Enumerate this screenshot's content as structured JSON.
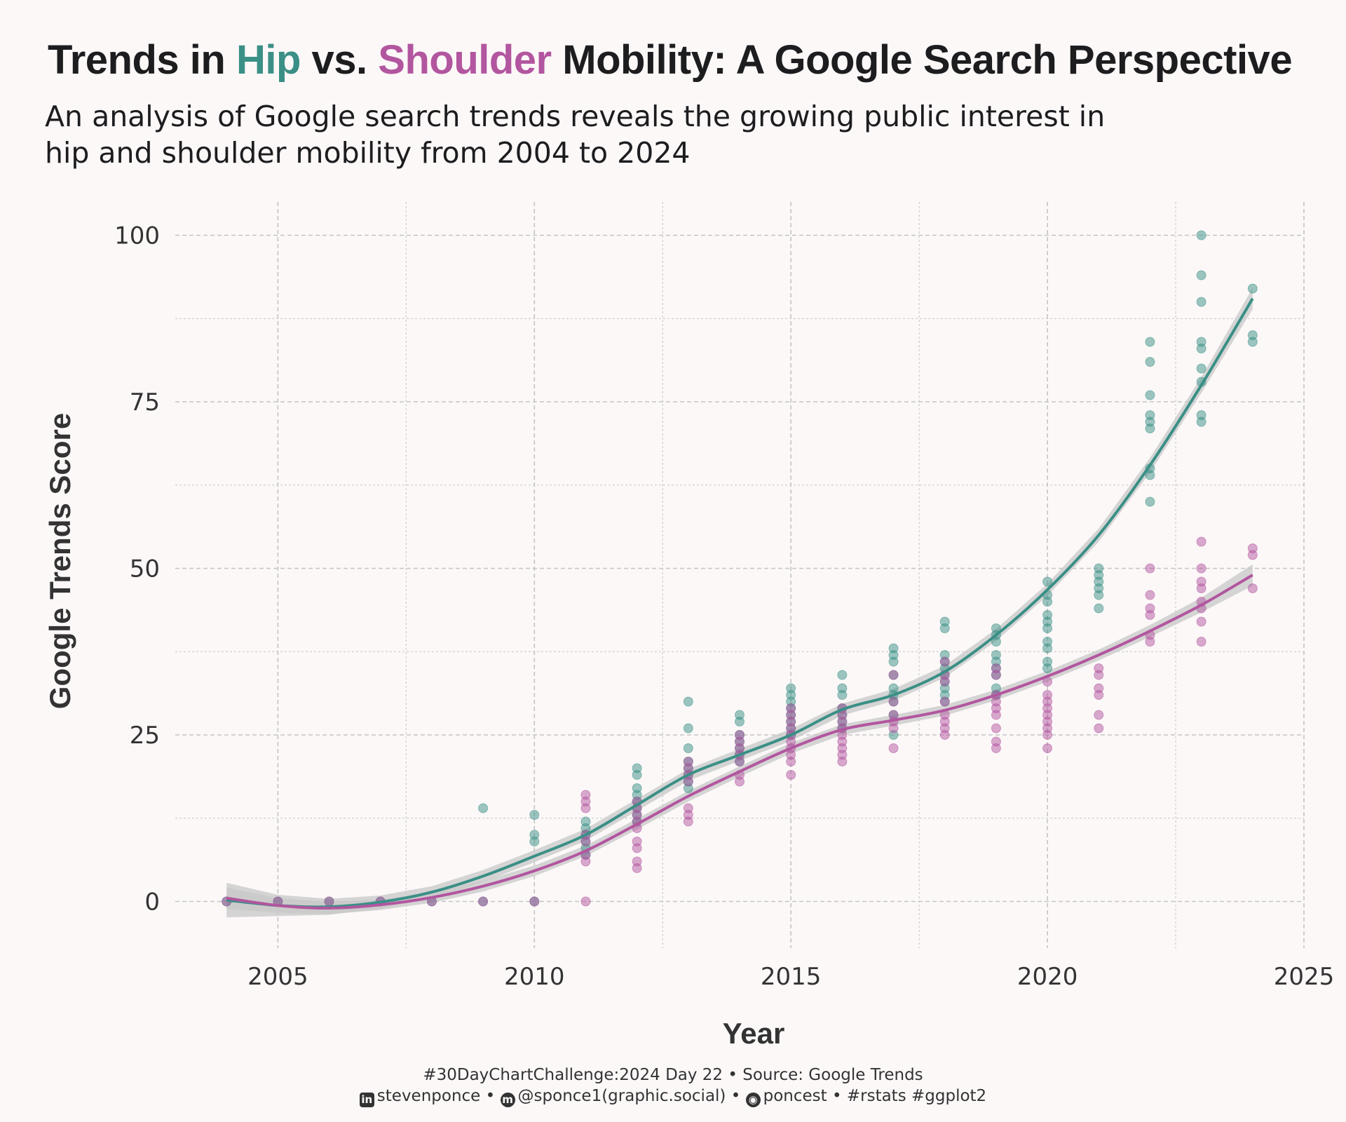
{
  "title": {
    "part1": "Trends in",
    "hip": "Hip",
    "part2": "vs.",
    "shoulder": "Shoulder",
    "part3": "Mobility: A Google Search Perspective"
  },
  "subtitle": {
    "line1": "An analysis of Google search trends reveals the growing public interest in",
    "line2": "hip and shoulder mobility from 2004 to 2024"
  },
  "caption": {
    "line1": "#30DayChartChallenge:2024 Day 22 • Source: Google Trends",
    "linkedin": "stevenponce",
    "mastodon": "@sponce1(graphic.social)",
    "github": "poncest",
    "tags": "#rstats #ggplot2",
    "sep": "•"
  },
  "colors": {
    "hip": "#3a8f86",
    "shoulder": "#b2569f",
    "overlap": "#5d6f88",
    "ribbon": "#c8c8c8",
    "grid": "#c4c4c4",
    "background": "#fcf8f8"
  },
  "icons": [
    "linkedin-icon",
    "mastodon-icon",
    "github-icon"
  ],
  "chart_data": {
    "type": "scatter",
    "xlabel": "Year",
    "ylabel": "Google Trends Score",
    "xlim": [
      2003,
      2025
    ],
    "ylim": [
      -7,
      105
    ],
    "x_ticks": [
      2005,
      2010,
      2015,
      2020,
      2025
    ],
    "y_ticks": [
      0,
      25,
      50,
      75,
      100
    ],
    "grid": "dashed, major and minor",
    "legend": "none (series identified by colored words in title)",
    "series": [
      {
        "name": "Hip",
        "color": "#3a8f86",
        "points": [
          [
            2004,
            0
          ],
          [
            2005,
            0
          ],
          [
            2006,
            0
          ],
          [
            2007,
            0
          ],
          [
            2008,
            0
          ],
          [
            2009,
            14
          ],
          [
            2009,
            0
          ],
          [
            2010,
            13
          ],
          [
            2010,
            10
          ],
          [
            2010,
            9
          ],
          [
            2010,
            0
          ],
          [
            2011,
            12
          ],
          [
            2011,
            11
          ],
          [
            2011,
            10
          ],
          [
            2011,
            9
          ],
          [
            2011,
            8
          ],
          [
            2011,
            7
          ],
          [
            2012,
            20
          ],
          [
            2012,
            19
          ],
          [
            2012,
            17
          ],
          [
            2012,
            16
          ],
          [
            2012,
            15
          ],
          [
            2012,
            14
          ],
          [
            2012,
            13
          ],
          [
            2012,
            12
          ],
          [
            2013,
            30
          ],
          [
            2013,
            26
          ],
          [
            2013,
            23
          ],
          [
            2013,
            21
          ],
          [
            2013,
            20
          ],
          [
            2013,
            19
          ],
          [
            2013,
            18
          ],
          [
            2013,
            17
          ],
          [
            2014,
            28
          ],
          [
            2014,
            27
          ],
          [
            2014,
            25
          ],
          [
            2014,
            24
          ],
          [
            2014,
            23
          ],
          [
            2014,
            22
          ],
          [
            2014,
            21
          ],
          [
            2015,
            32
          ],
          [
            2015,
            31
          ],
          [
            2015,
            30
          ],
          [
            2015,
            29
          ],
          [
            2015,
            28
          ],
          [
            2015,
            27
          ],
          [
            2015,
            26
          ],
          [
            2015,
            25
          ],
          [
            2016,
            34
          ],
          [
            2016,
            32
          ],
          [
            2016,
            31
          ],
          [
            2016,
            29
          ],
          [
            2016,
            28
          ],
          [
            2016,
            27
          ],
          [
            2016,
            26
          ],
          [
            2017,
            38
          ],
          [
            2017,
            37
          ],
          [
            2017,
            36
          ],
          [
            2017,
            34
          ],
          [
            2017,
            32
          ],
          [
            2017,
            31
          ],
          [
            2017,
            30
          ],
          [
            2017,
            28
          ],
          [
            2017,
            25
          ],
          [
            2018,
            42
          ],
          [
            2018,
            41
          ],
          [
            2018,
            37
          ],
          [
            2018,
            36
          ],
          [
            2018,
            35
          ],
          [
            2018,
            34
          ],
          [
            2018,
            33
          ],
          [
            2018,
            32
          ],
          [
            2018,
            31
          ],
          [
            2018,
            30
          ],
          [
            2019,
            41
          ],
          [
            2019,
            40
          ],
          [
            2019,
            39
          ],
          [
            2019,
            37
          ],
          [
            2019,
            36
          ],
          [
            2019,
            35
          ],
          [
            2019,
            34
          ],
          [
            2019,
            32
          ],
          [
            2019,
            31
          ],
          [
            2020,
            48
          ],
          [
            2020,
            46
          ],
          [
            2020,
            45
          ],
          [
            2020,
            43
          ],
          [
            2020,
            42
          ],
          [
            2020,
            41
          ],
          [
            2020,
            39
          ],
          [
            2020,
            38
          ],
          [
            2020,
            36
          ],
          [
            2020,
            35
          ],
          [
            2021,
            50
          ],
          [
            2021,
            49
          ],
          [
            2021,
            48
          ],
          [
            2021,
            47
          ],
          [
            2021,
            46
          ],
          [
            2021,
            44
          ],
          [
            2022,
            84
          ],
          [
            2022,
            81
          ],
          [
            2022,
            76
          ],
          [
            2022,
            73
          ],
          [
            2022,
            72
          ],
          [
            2022,
            71
          ],
          [
            2022,
            65
          ],
          [
            2022,
            64
          ],
          [
            2022,
            60
          ],
          [
            2023,
            100
          ],
          [
            2023,
            94
          ],
          [
            2023,
            90
          ],
          [
            2023,
            84
          ],
          [
            2023,
            83
          ],
          [
            2023,
            80
          ],
          [
            2023,
            78
          ],
          [
            2023,
            73
          ],
          [
            2023,
            72
          ],
          [
            2024,
            92
          ],
          [
            2024,
            85
          ],
          [
            2024,
            84
          ]
        ],
        "trend": [
          [
            2004,
            0.2
          ],
          [
            2005,
            -0.6
          ],
          [
            2006,
            -0.8
          ],
          [
            2007,
            -0.1
          ],
          [
            2008,
            1.4
          ],
          [
            2009,
            3.8
          ],
          [
            2010,
            6.8
          ],
          [
            2011,
            10.0
          ],
          [
            2012,
            14.5
          ],
          [
            2013,
            19.0
          ],
          [
            2014,
            22.0
          ],
          [
            2015,
            25.0
          ],
          [
            2016,
            28.8
          ],
          [
            2017,
            31.0
          ],
          [
            2018,
            34.5
          ],
          [
            2019,
            40.0
          ],
          [
            2020,
            46.8
          ],
          [
            2021,
            55.0
          ],
          [
            2022,
            65.5
          ],
          [
            2023,
            77.5
          ],
          [
            2024,
            90.5
          ]
        ],
        "band_halfwidth": [
          2.6,
          1.6,
          1.2,
          1.0,
          0.9,
          0.9,
          0.9,
          0.9,
          0.9,
          0.9,
          0.9,
          0.9,
          0.9,
          0.9,
          0.9,
          0.9,
          0.9,
          1.0,
          1.1,
          1.2,
          1.6
        ]
      },
      {
        "name": "Shoulder",
        "color": "#b2569f",
        "points": [
          [
            2004,
            0
          ],
          [
            2005,
            0
          ],
          [
            2006,
            0
          ],
          [
            2007,
            0
          ],
          [
            2008,
            0
          ],
          [
            2009,
            0
          ],
          [
            2010,
            0
          ],
          [
            2011,
            16
          ],
          [
            2011,
            15
          ],
          [
            2011,
            14
          ],
          [
            2011,
            10
          ],
          [
            2011,
            9
          ],
          [
            2011,
            7
          ],
          [
            2011,
            6
          ],
          [
            2011,
            0
          ],
          [
            2012,
            15
          ],
          [
            2012,
            14
          ],
          [
            2012,
            13
          ],
          [
            2012,
            12
          ],
          [
            2012,
            11
          ],
          [
            2012,
            9
          ],
          [
            2012,
            8
          ],
          [
            2012,
            6
          ],
          [
            2012,
            5
          ],
          [
            2013,
            21
          ],
          [
            2013,
            20
          ],
          [
            2013,
            19
          ],
          [
            2013,
            18
          ],
          [
            2013,
            14
          ],
          [
            2013,
            13
          ],
          [
            2013,
            12
          ],
          [
            2014,
            25
          ],
          [
            2014,
            24
          ],
          [
            2014,
            23
          ],
          [
            2014,
            22
          ],
          [
            2014,
            21
          ],
          [
            2014,
            19
          ],
          [
            2014,
            18
          ],
          [
            2015,
            29
          ],
          [
            2015,
            28
          ],
          [
            2015,
            27
          ],
          [
            2015,
            26
          ],
          [
            2015,
            25
          ],
          [
            2015,
            24
          ],
          [
            2015,
            23
          ],
          [
            2015,
            22
          ],
          [
            2015,
            21
          ],
          [
            2015,
            19
          ],
          [
            2016,
            29
          ],
          [
            2016,
            28
          ],
          [
            2016,
            27
          ],
          [
            2016,
            26
          ],
          [
            2016,
            25
          ],
          [
            2016,
            24
          ],
          [
            2016,
            23
          ],
          [
            2016,
            22
          ],
          [
            2016,
            21
          ],
          [
            2017,
            34
          ],
          [
            2017,
            30
          ],
          [
            2017,
            28
          ],
          [
            2017,
            27
          ],
          [
            2017,
            26
          ],
          [
            2017,
            23
          ],
          [
            2018,
            36
          ],
          [
            2018,
            34
          ],
          [
            2018,
            33
          ],
          [
            2018,
            30
          ],
          [
            2018,
            28
          ],
          [
            2018,
            27
          ],
          [
            2018,
            26
          ],
          [
            2018,
            25
          ],
          [
            2019,
            35
          ],
          [
            2019,
            34
          ],
          [
            2019,
            31
          ],
          [
            2019,
            30
          ],
          [
            2019,
            29
          ],
          [
            2019,
            28
          ],
          [
            2019,
            26
          ],
          [
            2019,
            24
          ],
          [
            2019,
            23
          ],
          [
            2020,
            33
          ],
          [
            2020,
            31
          ],
          [
            2020,
            30
          ],
          [
            2020,
            29
          ],
          [
            2020,
            28
          ],
          [
            2020,
            27
          ],
          [
            2020,
            26
          ],
          [
            2020,
            25
          ],
          [
            2020,
            23
          ],
          [
            2021,
            35
          ],
          [
            2021,
            34
          ],
          [
            2021,
            32
          ],
          [
            2021,
            31
          ],
          [
            2021,
            28
          ],
          [
            2021,
            26
          ],
          [
            2022,
            50
          ],
          [
            2022,
            46
          ],
          [
            2022,
            44
          ],
          [
            2022,
            43
          ],
          [
            2022,
            40
          ],
          [
            2022,
            39
          ],
          [
            2023,
            54
          ],
          [
            2023,
            50
          ],
          [
            2023,
            48
          ],
          [
            2023,
            47
          ],
          [
            2023,
            45
          ],
          [
            2023,
            44
          ],
          [
            2023,
            42
          ],
          [
            2023,
            39
          ],
          [
            2024,
            53
          ],
          [
            2024,
            52
          ],
          [
            2024,
            47
          ]
        ],
        "trend": [
          [
            2004,
            0.5
          ],
          [
            2005,
            -0.6
          ],
          [
            2006,
            -1.0
          ],
          [
            2007,
            -0.5
          ],
          [
            2008,
            0.6
          ],
          [
            2009,
            2.3
          ],
          [
            2010,
            4.6
          ],
          [
            2011,
            7.6
          ],
          [
            2012,
            11.6
          ],
          [
            2013,
            15.8
          ],
          [
            2014,
            19.5
          ],
          [
            2015,
            23.0
          ],
          [
            2016,
            25.8
          ],
          [
            2017,
            27.2
          ],
          [
            2018,
            28.7
          ],
          [
            2019,
            31.0
          ],
          [
            2020,
            33.8
          ],
          [
            2021,
            37.0
          ],
          [
            2022,
            40.6
          ],
          [
            2023,
            44.5
          ],
          [
            2024,
            49.0
          ]
        ],
        "band_halfwidth": [
          1.6,
          1.1,
          0.9,
          0.8,
          0.8,
          0.8,
          0.8,
          0.8,
          0.8,
          0.8,
          0.8,
          0.8,
          0.8,
          0.8,
          0.8,
          0.8,
          0.8,
          0.8,
          0.9,
          1.1,
          1.6
        ]
      }
    ]
  }
}
